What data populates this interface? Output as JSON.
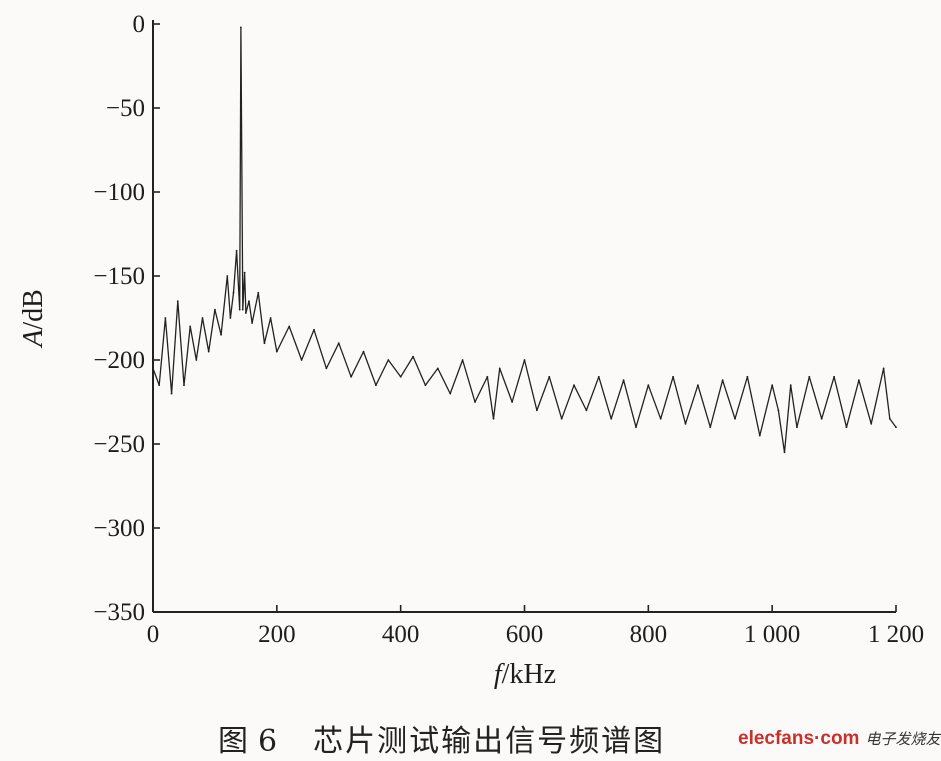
{
  "chart_data": {
    "type": "line",
    "title": "",
    "xlabel_var": "f",
    "xlabel_unit": "/kHz",
    "ylabel_var": "A",
    "ylabel_unit": "/dB",
    "xlim": [
      0,
      1200
    ],
    "ylim": [
      -350,
      0
    ],
    "xticks": [
      {
        "v": 0,
        "label": "0"
      },
      {
        "v": 200,
        "label": "200"
      },
      {
        "v": 400,
        "label": "400"
      },
      {
        "v": 600,
        "label": "600"
      },
      {
        "v": 800,
        "label": "800"
      },
      {
        "v": 1000,
        "label": "1 000"
      },
      {
        "v": 1200,
        "label": "1 200"
      }
    ],
    "yticks": [
      {
        "v": 0,
        "label": "0"
      },
      {
        "v": -50,
        "label": "-50"
      },
      {
        "v": -100,
        "label": "-100"
      },
      {
        "v": -150,
        "label": "-150"
      },
      {
        "v": -200,
        "label": "-200"
      },
      {
        "v": -250,
        "label": "-250"
      },
      {
        "v": -300,
        "label": "-300"
      },
      {
        "v": -350,
        "label": "-350"
      }
    ],
    "grid": false,
    "series": [
      {
        "color": "#222222",
        "x": [
          0,
          10,
          20,
          30,
          40,
          50,
          60,
          70,
          80,
          90,
          100,
          110,
          120,
          125,
          130,
          135,
          140,
          142,
          145,
          148,
          150,
          155,
          160,
          170,
          180,
          190,
          200,
          220,
          240,
          260,
          280,
          300,
          320,
          340,
          360,
          380,
          400,
          420,
          440,
          460,
          480,
          500,
          520,
          540,
          550,
          560,
          580,
          600,
          620,
          640,
          660,
          680,
          700,
          720,
          740,
          760,
          780,
          800,
          820,
          840,
          860,
          880,
          900,
          920,
          940,
          960,
          980,
          1000,
          1010,
          1020,
          1030,
          1040,
          1060,
          1080,
          1100,
          1120,
          1140,
          1160,
          1180,
          1190,
          1200
        ],
        "values": [
          -205,
          -215,
          -175,
          -220,
          -165,
          -215,
          -180,
          -200,
          -175,
          -195,
          -170,
          -185,
          -150,
          -175,
          -160,
          -135,
          -170,
          -2,
          -170,
          -148,
          -172,
          -165,
          -178,
          -160,
          -190,
          -175,
          -195,
          -180,
          -200,
          -182,
          -205,
          -190,
          -210,
          -195,
          -215,
          -200,
          -210,
          -198,
          -215,
          -205,
          -220,
          -200,
          -225,
          -210,
          -235,
          -205,
          -225,
          -200,
          -230,
          -210,
          -235,
          -215,
          -230,
          -210,
          -235,
          -212,
          -240,
          -215,
          -235,
          -210,
          -238,
          -215,
          -240,
          -212,
          -235,
          -210,
          -245,
          -215,
          -230,
          -255,
          -215,
          -240,
          -210,
          -235,
          -210,
          -240,
          -212,
          -238,
          -205,
          -235,
          -240
        ]
      }
    ]
  },
  "caption": {
    "prefix": "图",
    "number": "6",
    "text": "芯片测试输出信号频谱图"
  },
  "watermark": {
    "main": "elecfans·com",
    "sub": "电子发烧友"
  }
}
